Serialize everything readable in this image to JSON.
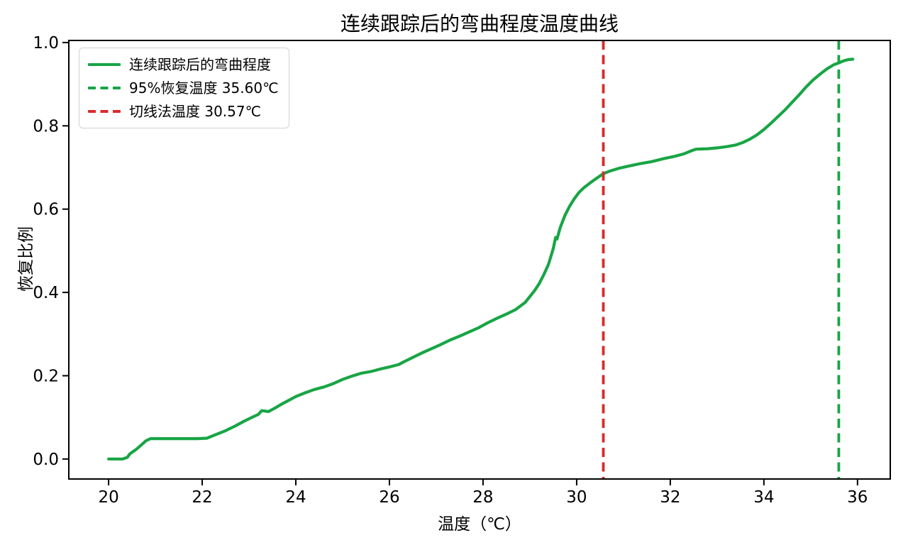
{
  "chart_data": {
    "type": "line",
    "title": "连续跟踪后的弯曲程度温度曲线",
    "xlabel": "温度（℃）",
    "ylabel": "恢复比例",
    "grid": false,
    "legend_position": "upper-left",
    "xlim": [
      19.15,
      36.7
    ],
    "ylim": [
      -0.048,
      1.005
    ],
    "xticks": [
      {
        "v": 20,
        "label": "20"
      },
      {
        "v": 22,
        "label": "22"
      },
      {
        "v": 24,
        "label": "24"
      },
      {
        "v": 26,
        "label": "26"
      },
      {
        "v": 28,
        "label": "28"
      },
      {
        "v": 30,
        "label": "30"
      },
      {
        "v": 32,
        "label": "32"
      },
      {
        "v": 34,
        "label": "34"
      },
      {
        "v": 36,
        "label": "36"
      }
    ],
    "yticks": [
      {
        "v": 0.0,
        "label": "0.0"
      },
      {
        "v": 0.2,
        "label": "0.2"
      },
      {
        "v": 0.4,
        "label": "0.4"
      },
      {
        "v": 0.6,
        "label": "0.6"
      },
      {
        "v": 0.8,
        "label": "0.8"
      },
      {
        "v": 1.0,
        "label": "1.0"
      }
    ],
    "series": [
      {
        "name": "连续跟踪后的弯曲程度",
        "color": "#18a545",
        "style": "solid",
        "linewidth": 4.2,
        "points": [
          [
            20.0,
            0.0
          ],
          [
            20.1,
            0.0
          ],
          [
            20.2,
            0.0
          ],
          [
            20.3,
            0.0
          ],
          [
            20.4,
            0.004
          ],
          [
            20.45,
            0.012
          ],
          [
            20.5,
            0.016
          ],
          [
            20.6,
            0.024
          ],
          [
            20.7,
            0.034
          ],
          [
            20.8,
            0.044
          ],
          [
            20.9,
            0.049
          ],
          [
            21.1,
            0.049
          ],
          [
            21.3,
            0.049
          ],
          [
            21.5,
            0.049
          ],
          [
            21.7,
            0.049
          ],
          [
            21.9,
            0.049
          ],
          [
            22.1,
            0.05
          ],
          [
            22.3,
            0.059
          ],
          [
            22.5,
            0.068
          ],
          [
            22.7,
            0.079
          ],
          [
            22.9,
            0.091
          ],
          [
            23.1,
            0.102
          ],
          [
            23.2,
            0.107
          ],
          [
            23.27,
            0.116
          ],
          [
            23.42,
            0.114
          ],
          [
            23.55,
            0.122
          ],
          [
            23.7,
            0.132
          ],
          [
            23.85,
            0.141
          ],
          [
            24.0,
            0.15
          ],
          [
            24.2,
            0.159
          ],
          [
            24.4,
            0.167
          ],
          [
            24.6,
            0.173
          ],
          [
            24.8,
            0.181
          ],
          [
            25.0,
            0.191
          ],
          [
            25.2,
            0.199
          ],
          [
            25.4,
            0.206
          ],
          [
            25.6,
            0.21
          ],
          [
            25.8,
            0.216
          ],
          [
            26.0,
            0.221
          ],
          [
            26.2,
            0.227
          ],
          [
            26.3,
            0.233
          ],
          [
            26.5,
            0.244
          ],
          [
            26.7,
            0.255
          ],
          [
            26.9,
            0.265
          ],
          [
            27.1,
            0.275
          ],
          [
            27.3,
            0.286
          ],
          [
            27.5,
            0.295
          ],
          [
            27.7,
            0.305
          ],
          [
            27.9,
            0.315
          ],
          [
            28.1,
            0.327
          ],
          [
            28.3,
            0.338
          ],
          [
            28.5,
            0.348
          ],
          [
            28.7,
            0.359
          ],
          [
            28.9,
            0.376
          ],
          [
            29.0,
            0.39
          ],
          [
            29.1,
            0.404
          ],
          [
            29.2,
            0.421
          ],
          [
            29.3,
            0.443
          ],
          [
            29.4,
            0.468
          ],
          [
            29.5,
            0.505
          ],
          [
            29.55,
            0.532
          ],
          [
            29.58,
            0.528
          ],
          [
            29.65,
            0.556
          ],
          [
            29.75,
            0.585
          ],
          [
            29.85,
            0.607
          ],
          [
            29.95,
            0.625
          ],
          [
            30.05,
            0.64
          ],
          [
            30.15,
            0.651
          ],
          [
            30.3,
            0.664
          ],
          [
            30.45,
            0.676
          ],
          [
            30.57,
            0.685
          ],
          [
            30.7,
            0.691
          ],
          [
            30.9,
            0.698
          ],
          [
            31.1,
            0.703
          ],
          [
            31.35,
            0.709
          ],
          [
            31.6,
            0.714
          ],
          [
            31.85,
            0.721
          ],
          [
            32.1,
            0.727
          ],
          [
            32.3,
            0.733
          ],
          [
            32.45,
            0.74
          ],
          [
            32.55,
            0.744
          ],
          [
            32.8,
            0.745
          ],
          [
            33.0,
            0.747
          ],
          [
            33.2,
            0.75
          ],
          [
            33.4,
            0.754
          ],
          [
            33.55,
            0.76
          ],
          [
            33.7,
            0.768
          ],
          [
            33.85,
            0.778
          ],
          [
            34.0,
            0.791
          ],
          [
            34.15,
            0.806
          ],
          [
            34.3,
            0.822
          ],
          [
            34.45,
            0.838
          ],
          [
            34.6,
            0.856
          ],
          [
            34.75,
            0.874
          ],
          [
            34.9,
            0.893
          ],
          [
            35.05,
            0.91
          ],
          [
            35.2,
            0.924
          ],
          [
            35.35,
            0.937
          ],
          [
            35.5,
            0.947
          ],
          [
            35.6,
            0.951
          ],
          [
            35.7,
            0.956
          ],
          [
            35.8,
            0.959
          ],
          [
            35.9,
            0.96
          ]
        ]
      }
    ],
    "vlines": [
      {
        "id": "recovery95-line",
        "x": 35.6,
        "color": "#18a545",
        "style": "dashed",
        "linewidth": 3.8,
        "label": "95%恢复温度 35.60℃"
      },
      {
        "id": "tangent-method-line",
        "x": 30.57,
        "color": "#d92b2b",
        "style": "dashed",
        "linewidth": 3.8,
        "label": "切线法温度 30.57℃"
      }
    ],
    "legend": {
      "entries": [
        {
          "swatch": "solid",
          "color": "#18a545",
          "label": "连续跟踪后的弯曲程度"
        },
        {
          "swatch": "dashed",
          "color": "#18a545",
          "label": "95%恢复温度 35.60℃"
        },
        {
          "swatch": "dashed",
          "color": "#d92b2b",
          "label": "切线法温度 30.57℃"
        }
      ]
    },
    "colors": {
      "curve_green": "#18a545",
      "tangent_red": "#d92b2b",
      "axis_black": "#000000",
      "background": "#ffffff"
    }
  }
}
